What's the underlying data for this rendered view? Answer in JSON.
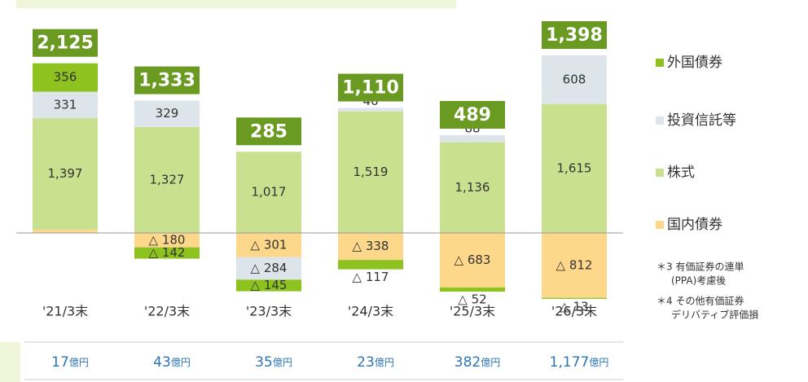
{
  "chart_data": {
    "type": "stacked_bar",
    "categories": [
      "'21/3末",
      "'22/3末",
      "'23/3末",
      "'24/3末",
      "'25/3末",
      "'26/3末"
    ],
    "series": [
      {
        "name": "外国債券",
        "color": "#8dc21f",
        "values": [
          356,
          -142,
          -145,
          -117,
          -52,
          -13
        ],
        "value_labels": [
          "356",
          "△ 142",
          "△ 145",
          "△ 117",
          "△ 52",
          "△ 13"
        ]
      },
      {
        "name": "投資信託等",
        "color": "#dde5ea",
        "values": [
          331,
          329,
          -284,
          46,
          88,
          608
        ],
        "value_labels": [
          "331",
          "329",
          "△ 284",
          "46",
          "88",
          "608"
        ]
      },
      {
        "name": "株式",
        "color": "#c9e08f",
        "values": [
          1397,
          1327,
          1017,
          1519,
          1136,
          1615
        ],
        "value_labels": [
          "1,397",
          "1,327",
          "1,017",
          "1,519",
          "1,136",
          "1,615"
        ]
      },
      {
        "name": "国内債券",
        "color": "#fdd88a",
        "values": [
          40,
          -180,
          -301,
          -338,
          -683,
          -812
        ],
        "value_labels": [
          "40",
          "△ 180",
          "△ 301",
          "△ 338",
          "△ 683",
          "△ 812"
        ]
      }
    ],
    "totals": [
      2125,
      1333,
      285,
      1110,
      489,
      1398
    ],
    "totals_labels": [
      "2,125",
      "1,333",
      "285",
      "1,110",
      "489",
      "1,398"
    ],
    "bottom_values": [
      17,
      43,
      35,
      23,
      382,
      1177
    ],
    "bottom_labels": [
      "17",
      "43",
      "35",
      "23",
      "382",
      "1,177"
    ],
    "bottom_unit": "億円",
    "notes": [
      "＊3 有価証券の連単",
      "(PPA)考慮後",
      "＊4 その他有価証券",
      "デリバティブ評価損"
    ]
  }
}
